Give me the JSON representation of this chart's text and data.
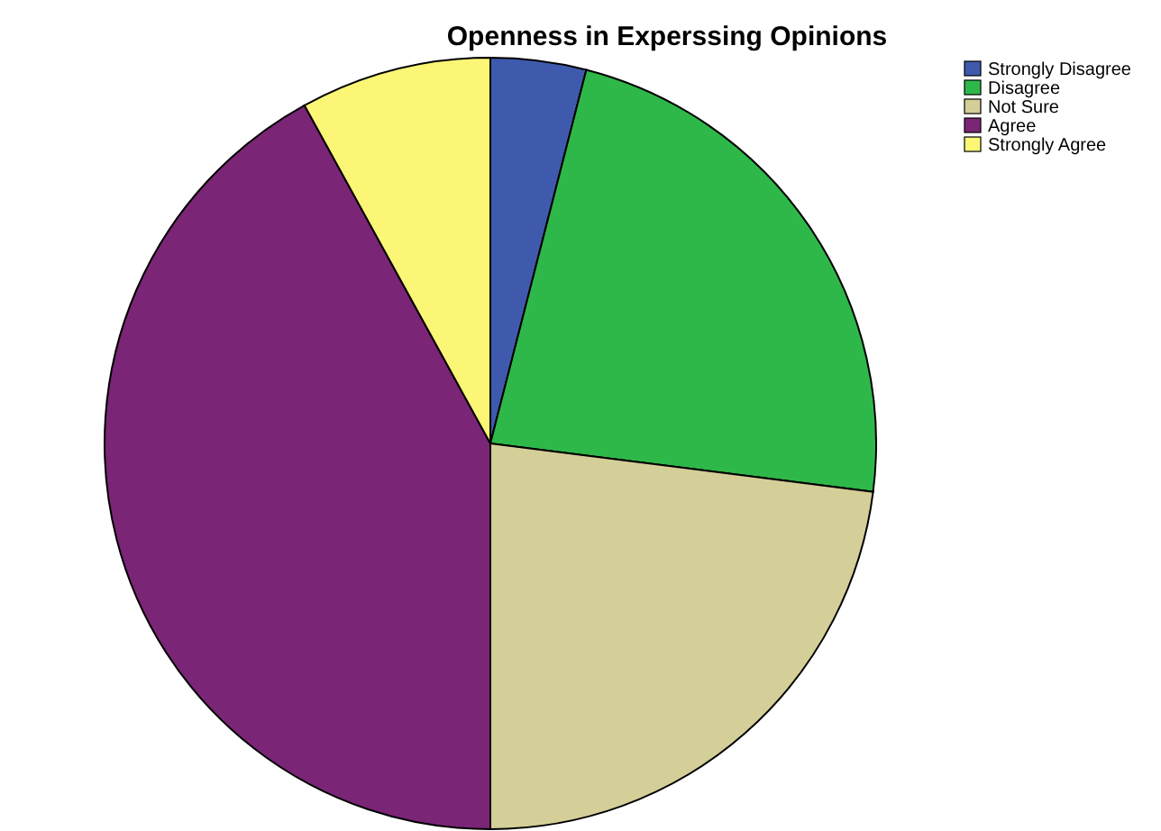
{
  "chart_data": {
    "type": "pie",
    "title": "Openness in Experssing Opinions",
    "categories": [
      "Strongly Disagree",
      "Disagree",
      "Not Sure",
      "Agree",
      "Strongly Agree"
    ],
    "values": [
      4,
      23,
      23,
      42,
      8
    ],
    "colors": [
      "#3f5aad",
      "#2fb84a",
      "#d4cf98",
      "#7b2577",
      "#fbf675"
    ],
    "legend": "top right"
  }
}
